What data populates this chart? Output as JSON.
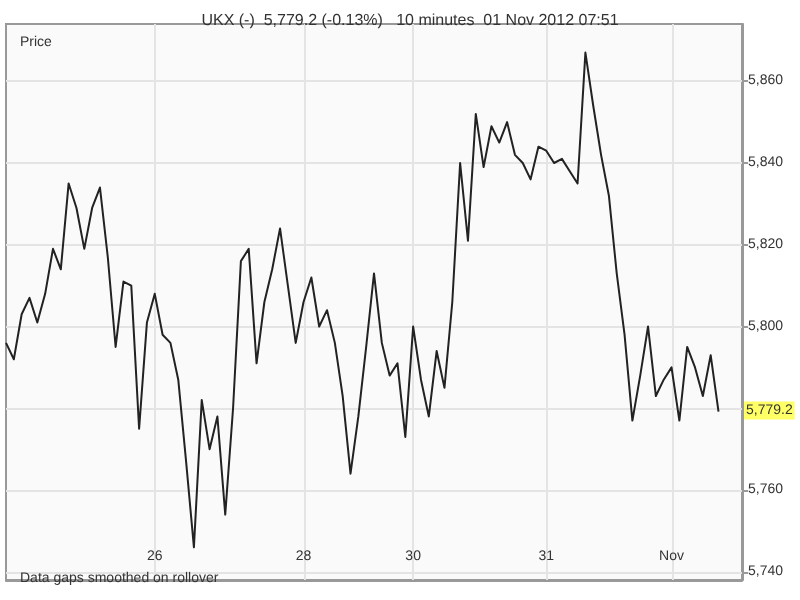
{
  "chart_data": {
    "type": "line",
    "title": "UKX (-)  5,779.2 (-0.13%)   10 minutes  01 Nov 2012 07:51",
    "ylabel": "Price",
    "annotations": [
      "Data gaps smoothed on rollover",
      {
        "text": "5,779.2",
        "y": 5779.2
      }
    ],
    "categories": [
      null,
      null,
      null,
      null,
      null,
      null,
      null,
      null,
      null,
      null,
      null,
      null,
      null,
      null,
      null,
      null,
      null,
      null,
      null,
      "26",
      null,
      null,
      null,
      null,
      null,
      null,
      null,
      null,
      null,
      null,
      null,
      null,
      null,
      null,
      null,
      null,
      null,
      null,
      "28",
      null,
      null,
      null,
      null,
      null,
      null,
      null,
      null,
      null,
      null,
      null,
      null,
      null,
      "30",
      null,
      null,
      null,
      null,
      null,
      null,
      null,
      null,
      null,
      null,
      null,
      null,
      null,
      null,
      null,
      null,
      "31",
      null,
      null,
      null,
      null,
      null,
      null,
      null,
      null,
      null,
      null,
      null,
      null,
      null,
      null,
      null,
      "Nov",
      null,
      null,
      null,
      null,
      null,
      null,
      null,
      null,
      null
    ],
    "series": [
      {
        "color": "#222222",
        "values": [
          5796,
          5792,
          5803,
          5807,
          5801,
          5808,
          5819,
          5814,
          5835,
          5829,
          5819,
          5829,
          5834,
          5817,
          5795,
          5811,
          5810,
          5775,
          5801,
          5808,
          5798,
          5796,
          5787,
          5767,
          5746,
          5782,
          5770,
          5778,
          5754,
          5780,
          5816,
          5819,
          5791,
          5806,
          5814,
          5824,
          5810,
          5796,
          5806,
          5812,
          5800,
          5804,
          5796,
          5783,
          5764,
          5778,
          5795,
          5813,
          5796,
          5788,
          5791,
          5773,
          5800,
          5787,
          5778,
          5794,
          5785,
          5806,
          5840,
          5821,
          5852,
          5839,
          5849,
          5845,
          5850,
          5842,
          5840,
          5836,
          5844,
          5843,
          5840,
          5841,
          5838,
          5835,
          5867,
          5854,
          5842,
          5832,
          5813,
          5798,
          5777,
          5788,
          5800,
          5783,
          5787,
          5790,
          5777,
          5795,
          5790,
          5783,
          5793,
          5779.2,
          null,
          null,
          null
        ]
      }
    ],
    "ylim": [
      5738,
      5874
    ],
    "yticks": [
      {
        "value": 5740,
        "label": "5,740"
      },
      {
        "value": 5760,
        "label": "5,760"
      },
      {
        "value": 5780,
        "label": null
      },
      {
        "value": 5800,
        "label": "5,800"
      },
      {
        "value": 5820,
        "label": "5,820"
      },
      {
        "value": 5840,
        "label": "5,840"
      },
      {
        "value": 5860,
        "label": "5,860"
      }
    ],
    "grid": true,
    "marker": "none",
    "line_style": "solid"
  }
}
